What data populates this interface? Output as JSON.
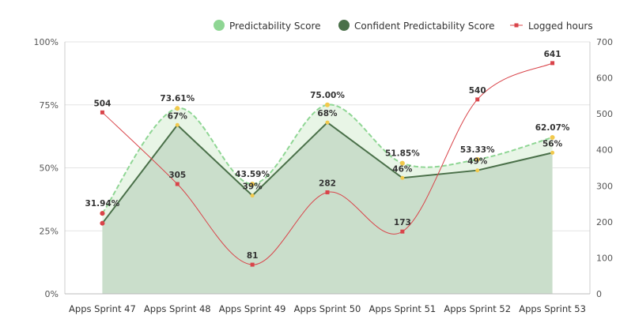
{
  "chart_data": {
    "type": "line",
    "categories": [
      "Apps Sprint 47",
      "Apps Sprint 48",
      "Apps Sprint 49",
      "Apps Sprint 50",
      "Apps Sprint 51",
      "Apps Sprint 52",
      "Apps Sprint 53"
    ],
    "series": [
      {
        "name": "Predictability Score",
        "kind": "dashed-area",
        "axis": "left",
        "color": "#8fd694",
        "fill": "#e8f5e6",
        "values": [
          31.94,
          73.61,
          43.59,
          75.0,
          51.85,
          53.33,
          62.07
        ],
        "labels": [
          "31.94%",
          "73.61%",
          "43.59%",
          "75.00%",
          "51.85%",
          "53.33%",
          "62.07%"
        ]
      },
      {
        "name": "Confident Predictability Score",
        "kind": "area",
        "axis": "left",
        "color": "#4a7049",
        "fill": "#cadecb",
        "values": [
          28,
          67,
          39,
          68,
          46,
          49,
          56
        ],
        "labels": [
          "",
          "67%",
          "39%",
          "68%",
          "46%",
          "49%",
          "56%"
        ]
      },
      {
        "name": "Logged hours",
        "kind": "line",
        "axis": "right",
        "color": "#d9444a",
        "values": [
          504,
          305,
          81,
          282,
          173,
          540,
          641
        ],
        "labels": [
          "504",
          "305",
          "81",
          "282",
          "173",
          "540",
          "641"
        ]
      }
    ],
    "y_left": {
      "min": 0,
      "max": 100,
      "ticks": [
        "0%",
        "25%",
        "50%",
        "75%",
        "100%"
      ],
      "tick_values": [
        0,
        25,
        50,
        75,
        100
      ]
    },
    "y_right": {
      "min": 0,
      "max": 700,
      "ticks": [
        "0",
        "100",
        "200",
        "300",
        "400",
        "500",
        "600",
        "700"
      ],
      "tick_values": [
        0,
        100,
        200,
        300,
        400,
        500,
        600,
        700
      ]
    },
    "grid": true,
    "legend_position": "top-right",
    "marker_color": "#f2c94c"
  }
}
